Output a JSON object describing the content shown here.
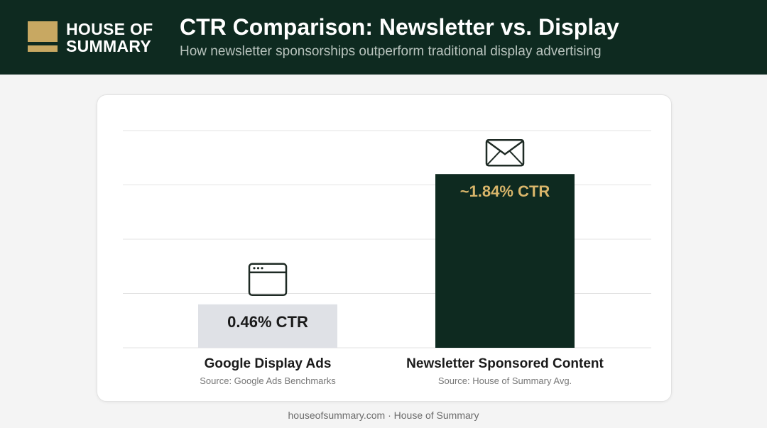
{
  "header": {
    "logo_line1": "HOUSE OF",
    "logo_line2": "SUMMARY",
    "title": "CTR Comparison: Newsletter vs. Display",
    "subtitle": "How newsletter sponsorships outperform traditional display advertising"
  },
  "chart_data": {
    "type": "bar",
    "categories": [
      "Google Display Ads",
      "Newsletter Sponsored Content"
    ],
    "values": [
      0.46,
      1.84
    ],
    "data_labels": [
      "0.46% CTR",
      "~1.84% CTR"
    ],
    "sources": [
      "Source: Google Ads Benchmarks",
      "Source: House of Summary Avg."
    ],
    "icons": [
      "browser-window-icon",
      "envelope-icon"
    ],
    "ylim": [
      0,
      2.3
    ],
    "grid": true,
    "colors": {
      "display_bar": "#dfe1e6",
      "newsletter_bar": "#0e2a20",
      "display_label": "#1a1a1a",
      "newsletter_label": "#d8b56a",
      "gridline": "#e3e3e3",
      "icon": "#1e2a24"
    }
  },
  "footer": {
    "text": "houseofsummary.com · House of Summary"
  }
}
